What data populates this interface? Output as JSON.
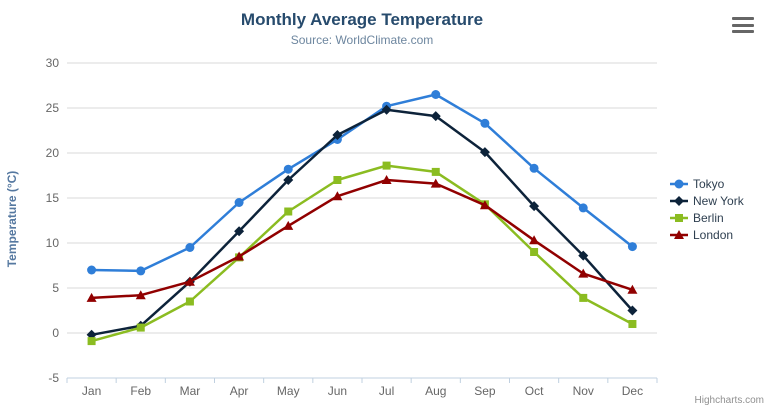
{
  "header": {
    "title": "Monthly Average Temperature",
    "subtitle": "Source: WorldClimate.com"
  },
  "credits": "Highcharts.com",
  "menu_icon": "hamburger-icon",
  "chart_data": {
    "type": "line",
    "title": "Monthly Average Temperature",
    "subtitle": "Source: WorldClimate.com",
    "xlabel": "",
    "ylabel": "Temperature (°C)",
    "ylim": [
      -5,
      30
    ],
    "ytick_interval": 5,
    "grid": true,
    "legend_position": "right",
    "categories": [
      "Jan",
      "Feb",
      "Mar",
      "Apr",
      "May",
      "Jun",
      "Jul",
      "Aug",
      "Sep",
      "Oct",
      "Nov",
      "Dec"
    ],
    "series": [
      {
        "name": "Tokyo",
        "color": "#2f7ed8",
        "marker": "circle",
        "values": [
          7.0,
          6.9,
          9.5,
          14.5,
          18.2,
          21.5,
          25.2,
          26.5,
          23.3,
          18.3,
          13.9,
          9.6
        ]
      },
      {
        "name": "New York",
        "color": "#0d233a",
        "marker": "diamond",
        "values": [
          -0.2,
          0.8,
          5.7,
          11.3,
          17.0,
          22.0,
          24.8,
          24.1,
          20.1,
          14.1,
          8.6,
          2.5
        ]
      },
      {
        "name": "Berlin",
        "color": "#8bbc21",
        "marker": "square",
        "values": [
          -0.9,
          0.6,
          3.5,
          8.4,
          13.5,
          17.0,
          18.6,
          17.9,
          14.3,
          9.0,
          3.9,
          1.0
        ]
      },
      {
        "name": "London",
        "color": "#910000",
        "marker": "triangle",
        "values": [
          3.9,
          4.2,
          5.7,
          8.5,
          11.9,
          15.2,
          17.0,
          16.6,
          14.2,
          10.3,
          6.6,
          4.8
        ]
      }
    ]
  },
  "colors": {
    "grid": "#d8d8d8",
    "axis_line": "#c0d0e0",
    "axis_label": "#666666",
    "title": "#274b6d",
    "subtitle": "#6d869f",
    "axis_title": "#5578a0",
    "legend_text": "#2e3f50",
    "credits": "#909090"
  }
}
